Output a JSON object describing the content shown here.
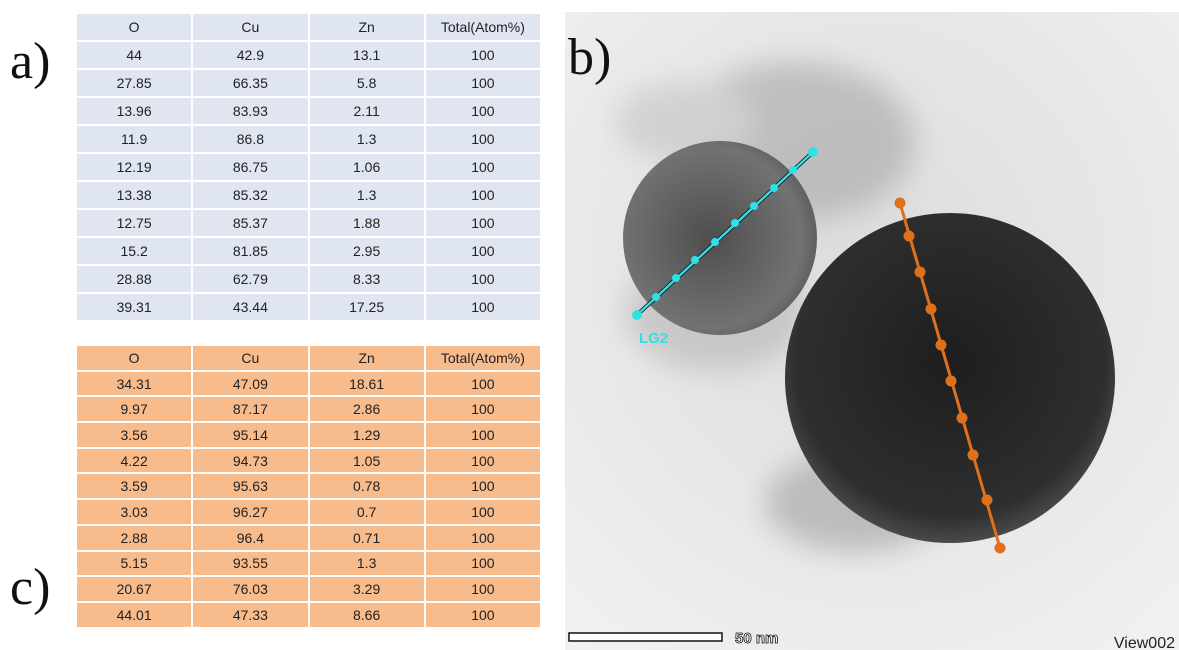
{
  "panels": {
    "a": "a)",
    "b": "b)",
    "c": "c)"
  },
  "table_a": {
    "header": [
      "O",
      "Cu",
      "Zn",
      "Total(Atom%)"
    ],
    "rows": [
      [
        "44",
        "42.9",
        "13.1",
        "100"
      ],
      [
        "27.85",
        "66.35",
        "5.8",
        "100"
      ],
      [
        "13.96",
        "83.93",
        "2.11",
        "100"
      ],
      [
        "11.9",
        "86.8",
        "1.3",
        "100"
      ],
      [
        "12.19",
        "86.75",
        "1.06",
        "100"
      ],
      [
        "13.38",
        "85.32",
        "1.3",
        "100"
      ],
      [
        "12.75",
        "85.37",
        "1.88",
        "100"
      ],
      [
        "15.2",
        "81.85",
        "2.95",
        "100"
      ],
      [
        "28.88",
        "62.79",
        "8.33",
        "100"
      ],
      [
        "39.31",
        "43.44",
        "17.25",
        "100"
      ]
    ]
  },
  "table_c": {
    "header": [
      "O",
      "Cu",
      "Zn",
      "Total(Atom%)"
    ],
    "rows": [
      [
        "34.31",
        "47.09",
        "18.61",
        "100"
      ],
      [
        "9.97",
        "87.17",
        "2.86",
        "100"
      ],
      [
        "3.56",
        "95.14",
        "1.29",
        "100"
      ],
      [
        "4.22",
        "94.73",
        "1.05",
        "100"
      ],
      [
        "3.59",
        "95.63",
        "0.78",
        "100"
      ],
      [
        "3.03",
        "96.27",
        "0.7",
        "100"
      ],
      [
        "2.88",
        "96.4",
        "0.71",
        "100"
      ],
      [
        "5.15",
        "93.55",
        "1.3",
        "100"
      ],
      [
        "20.67",
        "76.03",
        "3.29",
        "100"
      ],
      [
        "44.01",
        "47.33",
        "8.66",
        "100"
      ]
    ]
  },
  "micrograph": {
    "line_label": "LG2",
    "scale_bar": "50 nm",
    "view": "View002"
  }
}
